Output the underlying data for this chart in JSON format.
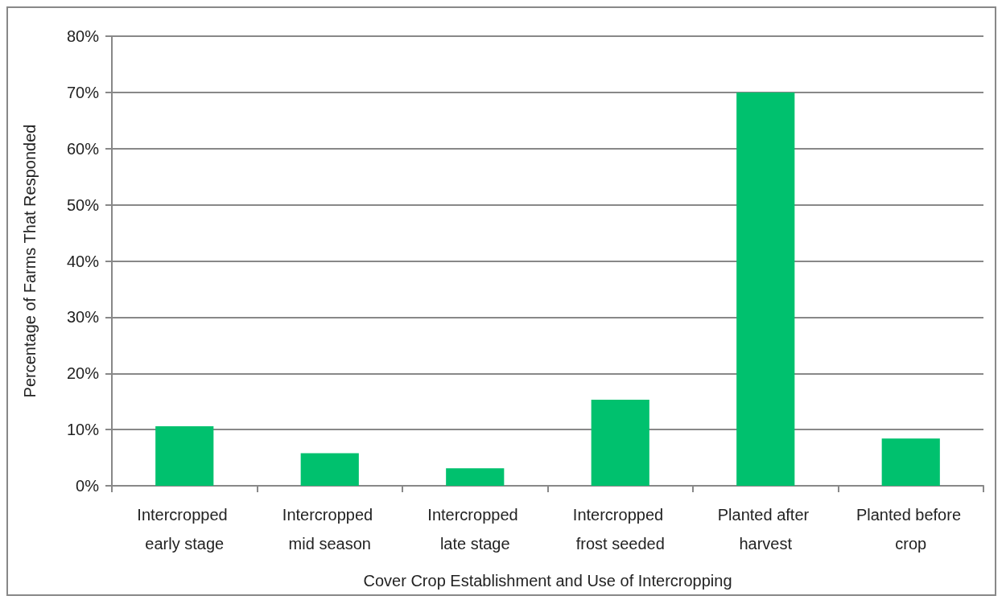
{
  "chart_data": {
    "type": "bar",
    "xlabel": "Cover Crop Establishment and Use of Intercropping",
    "ylabel": "Percentage of Farms That Responded",
    "categories": [
      "Intercropped early stage",
      "Intercropped mid season",
      "Intercropped late stage",
      "Intercropped frost seeded",
      "Planted after harvest",
      "Planted before crop"
    ],
    "values": [
      10.6,
      5.8,
      3.1,
      15.3,
      70.0,
      8.4
    ],
    "color": "#00c16e",
    "ylim": [
      0,
      80
    ],
    "yticks": [
      {
        "value": 0,
        "label": "0%"
      },
      {
        "value": 10,
        "label": "10%"
      },
      {
        "value": 20,
        "label": "20%"
      },
      {
        "value": 30,
        "label": "30%"
      },
      {
        "value": 40,
        "label": "40%"
      },
      {
        "value": 50,
        "label": "50%"
      },
      {
        "value": 60,
        "label": "60%"
      },
      {
        "value": 70,
        "label": "70%"
      },
      {
        "value": 80,
        "label": "80%"
      }
    ],
    "grid": "y"
  }
}
